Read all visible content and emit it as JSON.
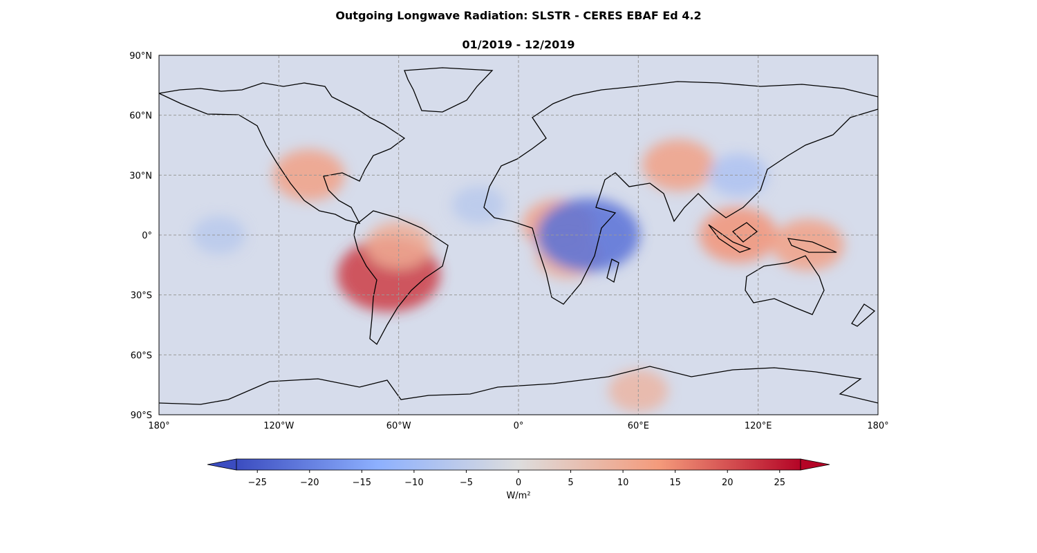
{
  "title": "Outgoing Longwave Radiation: SLSTR - CERES EBAF Ed 4.2",
  "subtitle": "01/2019 - 12/2019",
  "map": {
    "projection": "PlateCarree",
    "lon_range": [
      -180,
      180
    ],
    "lat_range": [
      -90,
      90
    ],
    "gridlines": true,
    "lon_ticks": [
      {
        "value": -180,
        "label": "180°"
      },
      {
        "value": -120,
        "label": "120°W"
      },
      {
        "value": -60,
        "label": "60°W"
      },
      {
        "value": 0,
        "label": "0°"
      },
      {
        "value": 60,
        "label": "60°E"
      },
      {
        "value": 120,
        "label": "120°E"
      },
      {
        "value": 180,
        "label": "180°"
      }
    ],
    "lat_ticks": [
      {
        "value": 90,
        "label": "90°N"
      },
      {
        "value": 60,
        "label": "60°N"
      },
      {
        "value": 30,
        "label": "30°N"
      },
      {
        "value": 0,
        "label": "0°"
      },
      {
        "value": -30,
        "label": "30°S"
      },
      {
        "value": -60,
        "label": "60°S"
      },
      {
        "value": -90,
        "label": "90°S"
      }
    ]
  },
  "colorbar": {
    "label": "W/m²",
    "colormap": "coolwarm",
    "range": [
      -27,
      27
    ],
    "extend": "both",
    "ticks": [
      {
        "value": -25,
        "label": "−25"
      },
      {
        "value": -20,
        "label": "−20"
      },
      {
        "value": -15,
        "label": "−15"
      },
      {
        "value": -10,
        "label": "−10"
      },
      {
        "value": -5,
        "label": "−5"
      },
      {
        "value": 0,
        "label": "0"
      },
      {
        "value": 5,
        "label": "5"
      },
      {
        "value": 10,
        "label": "10"
      },
      {
        "value": 15,
        "label": "15"
      },
      {
        "value": 20,
        "label": "20"
      },
      {
        "value": 25,
        "label": "25"
      }
    ],
    "colors": {
      "min": "#3b4cc0",
      "low": "#8db0fe",
      "mid": "#dddddd",
      "high": "#f49a7b",
      "max": "#b40426"
    }
  },
  "anomalies": [
    {
      "lon": -105,
      "lat": 30,
      "value": 12
    },
    {
      "lon": -65,
      "lat": -20,
      "value": 22
    },
    {
      "lon": -60,
      "lat": -5,
      "value": 10
    },
    {
      "lon": 20,
      "lat": 5,
      "value": 12
    },
    {
      "lon": 25,
      "lat": -10,
      "value": 10
    },
    {
      "lon": 35,
      "lat": 0,
      "value": -22
    },
    {
      "lon": 80,
      "lat": 35,
      "value": 12
    },
    {
      "lon": 110,
      "lat": 0,
      "value": 14
    },
    {
      "lon": 145,
      "lat": -5,
      "value": 12
    },
    {
      "lon": 60,
      "lat": -78,
      "value": 8
    },
    {
      "lon": -150,
      "lat": 0,
      "value": -6
    },
    {
      "lon": -20,
      "lat": 15,
      "value": -6
    },
    {
      "lon": 110,
      "lat": 30,
      "value": -8
    }
  ]
}
